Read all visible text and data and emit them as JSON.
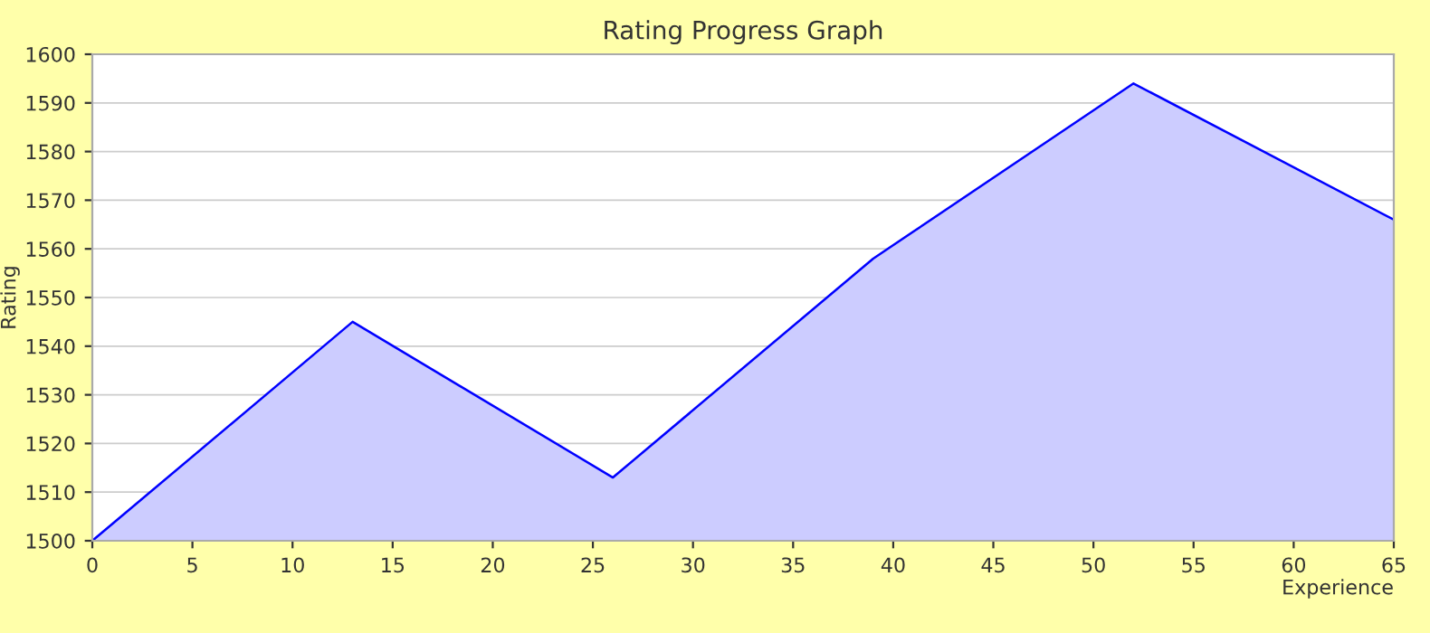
{
  "chart_data": {
    "type": "area",
    "title": "Rating Progress Graph",
    "xlabel": "Experience",
    "ylabel": "Rating",
    "x": [
      0,
      13,
      26,
      39,
      52,
      65
    ],
    "series": [
      {
        "color": "#0000ff",
        "values": [
          1500,
          1545,
          1513,
          1558,
          1594,
          1566
        ]
      }
    ],
    "xlim": [
      0,
      65
    ],
    "xticks": [
      0,
      5,
      10,
      15,
      20,
      25,
      30,
      35,
      40,
      45,
      50,
      55,
      60,
      65
    ],
    "ylim": [
      1500,
      1600
    ],
    "yticks": [
      1500,
      1510,
      1520,
      1530,
      1540,
      1550,
      1560,
      1570,
      1580,
      1590,
      1600
    ],
    "grid": "y",
    "legend": false
  }
}
